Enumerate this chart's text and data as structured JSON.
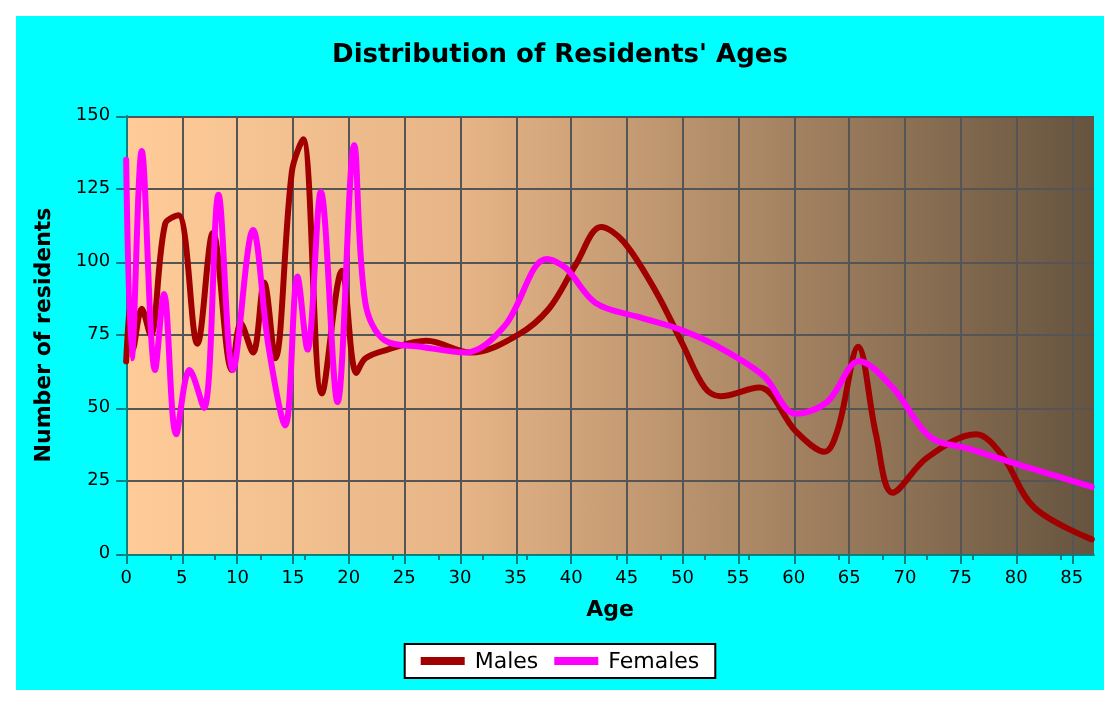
{
  "chart_data": {
    "type": "line",
    "title": "Distribution of Residents' Ages",
    "xlabel": "Age",
    "ylabel": "Number of residents",
    "xlim": [
      0,
      87
    ],
    "xticks": [
      0,
      5,
      10,
      15,
      20,
      25,
      30,
      35,
      40,
      45,
      50,
      55,
      60,
      65,
      70,
      75,
      80,
      85
    ],
    "ylim": [
      0,
      150
    ],
    "yticks": [
      0,
      25,
      50,
      75,
      100,
      125,
      150
    ],
    "grid": true,
    "legend": "bottom",
    "marker": "none",
    "line_style": "solid",
    "series": [
      {
        "name": "Males",
        "color": "#a00000",
        "x": [
          0,
          0.35,
          0.6,
          1.4,
          2.2,
          3.5,
          4.7,
          6.4,
          7.8,
          9.5,
          10.3,
          11.4,
          12.4,
          13.4,
          14.9,
          15.9,
          17.6,
          19.4,
          20.7,
          21.5,
          23.5,
          27,
          31,
          35.2,
          38,
          40.4,
          42.7,
          44.7,
          47.6,
          50,
          52,
          53.4,
          56.9,
          60.2,
          62.8,
          64,
          65.8,
          67.4,
          68.9,
          72,
          76.4,
          78.7,
          81.6,
          86.8
        ],
        "values": [
          66,
          84,
          70,
          84,
          75,
          113,
          116,
          72,
          110,
          63,
          79,
          69,
          93,
          67,
          131,
          142,
          55,
          97,
          62,
          67,
          70,
          73,
          69,
          75,
          84,
          99,
          112,
          107,
          90,
          72,
          57,
          54,
          57,
          42,
          35,
          43,
          71,
          41,
          21,
          33,
          41,
          34,
          16,
          5
        ]
      },
      {
        "name": "Females",
        "color": "#ff00ff",
        "x": [
          0,
          0.5,
          1.4,
          2.6,
          3.4,
          4.5,
          5.7,
          7,
          8.3,
          9.6,
          11.4,
          12.8,
          14.3,
          15.4,
          16.3,
          17.5,
          19,
          20.5,
          21.5,
          23.3,
          26.5,
          30.5,
          34,
          37.8,
          39.5,
          42.2,
          46.2,
          49.7,
          53.2,
          57.3,
          60.2,
          63,
          65.9,
          68.9,
          72.3,
          75.8,
          79.9,
          86.8
        ],
        "values": [
          135,
          67,
          138,
          63,
          89,
          41,
          63,
          50,
          123,
          63,
          111,
          71,
          44,
          95,
          70,
          124,
          52,
          140,
          86,
          73,
          71,
          69,
          78,
          101,
          98,
          86,
          81,
          77,
          71,
          61,
          48,
          52,
          66,
          57,
          40,
          36,
          31,
          23
        ]
      }
    ]
  }
}
